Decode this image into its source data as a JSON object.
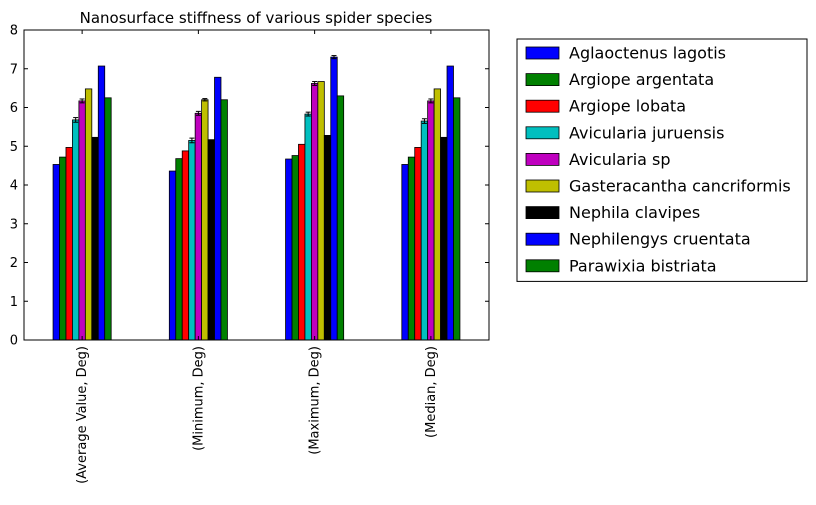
{
  "chart_data": {
    "type": "bar",
    "title": "Nanosurface stiffness of various spider species",
    "xlabel": "",
    "ylabel": "",
    "ylim": [
      0,
      8
    ],
    "yticks": [
      0,
      1,
      2,
      3,
      4,
      5,
      6,
      7,
      8
    ],
    "grid": false,
    "legend_position": "outside-right",
    "categories": [
      "(Average Value, Deg)",
      "(Minimum, Deg)",
      "(Maximum, Deg)",
      "(Median, Deg)"
    ],
    "series": [
      {
        "name": "Aglaoctenus lagotis",
        "color": "#0000ff",
        "values": [
          4.53,
          4.36,
          4.67,
          4.53
        ],
        "errors": [
          0,
          0,
          0,
          0
        ]
      },
      {
        "name": "Argiope argentata",
        "color": "#008000",
        "values": [
          4.72,
          4.68,
          4.76,
          4.72
        ],
        "errors": [
          0,
          0,
          0,
          0
        ]
      },
      {
        "name": "Argiope lobata",
        "color": "#ff0000",
        "values": [
          4.97,
          4.88,
          5.05,
          4.97
        ],
        "errors": [
          0,
          0,
          0,
          0
        ]
      },
      {
        "name": "Avicularia juruensis",
        "color": "#00bfbf",
        "values": [
          5.68,
          5.15,
          5.83,
          5.65
        ],
        "errors": [
          0.06,
          0.06,
          0.05,
          0.06
        ]
      },
      {
        "name": "Avicularia sp",
        "color": "#bf00bf",
        "values": [
          6.17,
          5.85,
          6.62,
          6.17
        ],
        "errors": [
          0.05,
          0.05,
          0.05,
          0.05
        ]
      },
      {
        "name": "Gasteracantha cancriformis",
        "color": "#bfbf00",
        "values": [
          6.48,
          6.2,
          6.67,
          6.48
        ],
        "errors": [
          0,
          0.03,
          0,
          0
        ]
      },
      {
        "name": "Nephila clavipes",
        "color": "#000000",
        "values": [
          5.23,
          5.17,
          5.28,
          5.23
        ],
        "errors": [
          0,
          0,
          0,
          0
        ]
      },
      {
        "name": "Nephilengys cruentata",
        "color": "#0000ff",
        "values": [
          7.07,
          6.78,
          7.3,
          7.07
        ],
        "errors": [
          0,
          0,
          0.04,
          0
        ]
      },
      {
        "name": "Parawixia bistriata",
        "color": "#008000",
        "values": [
          6.25,
          6.2,
          6.3,
          6.25
        ],
        "errors": [
          0,
          0,
          0,
          0
        ]
      }
    ]
  }
}
